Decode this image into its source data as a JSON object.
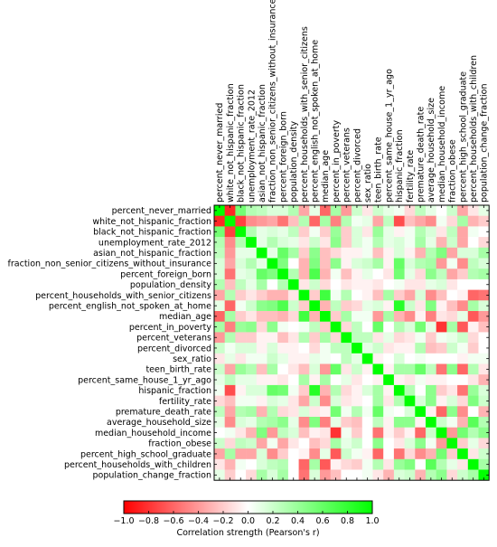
{
  "chart_data": {
    "type": "heatmap",
    "title": "",
    "variables": [
      "percent_never_married",
      "white_not_hispanic_fraction",
      "black_not_hispanic_fraction",
      "unemployment_rate_2012",
      "asian_not_hispanic_fraction",
      "fraction_non_senior_citizens_without_insurance",
      "percent_foreign_born",
      "population_density",
      "percent_households_with_senior_citizens",
      "percent_english_not_spoken_at_home",
      "median_age",
      "percent_in_poverty",
      "percent_veterans",
      "percent_divorced",
      "sex_ratio",
      "teen_birth_rate",
      "percent_same_house_1_yr_ago",
      "hispanic_fraction",
      "fertility_rate",
      "premature_death_rate",
      "average_household_size",
      "median_household_income",
      "fraction_obese",
      "percent_high_school_graduate",
      "percent_households_with_children",
      "population_change_fraction"
    ],
    "matrix": [
      [
        1.0,
        -0.85,
        0.55,
        0.3,
        0.25,
        0.15,
        0.15,
        0.3,
        -0.35,
        0.1,
        -0.6,
        0.35,
        -0.4,
        0.2,
        -0.1,
        0.2,
        0.1,
        0.05,
        -0.15,
        0.25,
        0.1,
        0.0,
        0.2,
        -0.35,
        -0.1,
        0.1
      ],
      [
        -0.85,
        1.0,
        -0.75,
        -0.45,
        -0.4,
        -0.35,
        -0.55,
        -0.25,
        0.3,
        -0.6,
        0.35,
        -0.5,
        0.3,
        0.05,
        0.1,
        -0.35,
        0.25,
        -0.7,
        -0.25,
        -0.35,
        -0.45,
        0.05,
        -0.15,
        0.35,
        -0.3,
        -0.2
      ],
      [
        0.55,
        -0.75,
        1.0,
        0.3,
        0.1,
        0.15,
        0.1,
        0.25,
        -0.2,
        0.05,
        -0.2,
        0.4,
        -0.2,
        0.15,
        -0.1,
        0.4,
        0.1,
        -0.05,
        0.05,
        0.3,
        0.15,
        -0.1,
        0.25,
        -0.35,
        0.05,
        0.0
      ],
      [
        0.3,
        -0.45,
        0.3,
        1.0,
        0.1,
        0.3,
        0.15,
        0.1,
        -0.1,
        0.2,
        -0.1,
        0.45,
        -0.2,
        0.15,
        0.05,
        0.3,
        0.1,
        0.15,
        0.05,
        0.35,
        0.1,
        -0.3,
        0.2,
        -0.35,
        0.0,
        -0.15
      ],
      [
        0.25,
        -0.4,
        0.1,
        0.1,
        1.0,
        0.1,
        0.6,
        0.35,
        -0.2,
        0.45,
        -0.25,
        -0.15,
        -0.05,
        -0.05,
        0.05,
        -0.25,
        -0.05,
        0.15,
        -0.05,
        -0.3,
        0.3,
        0.5,
        -0.35,
        0.15,
        0.15,
        0.35
      ],
      [
        0.15,
        -0.35,
        0.15,
        0.3,
        0.1,
        1.0,
        0.5,
        0.0,
        -0.3,
        0.5,
        -0.25,
        0.45,
        -0.05,
        0.15,
        0.2,
        0.35,
        -0.05,
        0.6,
        0.15,
        0.3,
        0.35,
        -0.4,
        0.05,
        -0.45,
        0.25,
        0.15
      ],
      [
        0.15,
        -0.55,
        0.1,
        0.15,
        0.6,
        0.5,
        1.0,
        0.3,
        -0.3,
        0.7,
        -0.3,
        0.05,
        -0.25,
        -0.05,
        0.1,
        0.0,
        -0.1,
        0.55,
        0.1,
        -0.15,
        0.45,
        0.25,
        -0.35,
        -0.2,
        0.3,
        0.35
      ],
      [
        0.3,
        -0.25,
        0.25,
        0.1,
        0.35,
        0.0,
        0.3,
        1.0,
        -0.1,
        0.2,
        -0.15,
        0.0,
        -0.1,
        -0.05,
        -0.05,
        -0.1,
        0.0,
        0.05,
        -0.1,
        -0.1,
        0.1,
        0.15,
        -0.1,
        0.0,
        0.0,
        0.0
      ],
      [
        -0.35,
        0.3,
        -0.2,
        -0.1,
        -0.2,
        -0.3,
        -0.3,
        -0.1,
        1.0,
        -0.2,
        0.75,
        0.05,
        0.3,
        0.0,
        -0.05,
        -0.25,
        0.35,
        -0.2,
        -0.35,
        0.15,
        -0.45,
        -0.25,
        0.0,
        -0.05,
        -0.6,
        -0.55
      ],
      [
        0.1,
        -0.6,
        0.05,
        0.2,
        0.45,
        0.5,
        0.7,
        0.2,
        -0.2,
        1.0,
        -0.3,
        0.25,
        -0.2,
        -0.15,
        0.1,
        0.15,
        -0.05,
        0.85,
        0.2,
        -0.1,
        0.5,
        -0.05,
        -0.25,
        -0.45,
        0.35,
        0.15
      ],
      [
        -0.6,
        0.35,
        -0.2,
        -0.1,
        -0.25,
        -0.25,
        -0.3,
        -0.15,
        0.75,
        -0.3,
        1.0,
        -0.2,
        0.35,
        0.05,
        0.05,
        -0.4,
        0.35,
        -0.3,
        -0.45,
        -0.05,
        -0.5,
        -0.1,
        -0.15,
        0.1,
        -0.65,
        -0.4
      ],
      [
        0.35,
        -0.5,
        0.4,
        0.45,
        -0.15,
        0.45,
        0.05,
        0.0,
        0.05,
        0.25,
        -0.2,
        1.0,
        -0.15,
        0.25,
        0.0,
        0.6,
        0.0,
        0.3,
        0.15,
        0.55,
        0.1,
        -0.8,
        0.35,
        -0.65,
        -0.05,
        -0.25
      ],
      [
        -0.4,
        0.3,
        -0.2,
        -0.2,
        -0.05,
        -0.05,
        -0.25,
        -0.1,
        0.3,
        -0.2,
        0.35,
        -0.15,
        1.0,
        0.25,
        0.25,
        -0.1,
        0.1,
        -0.15,
        -0.1,
        0.05,
        -0.2,
        0.05,
        0.1,
        0.2,
        -0.15,
        0.0
      ],
      [
        0.2,
        0.05,
        0.15,
        0.15,
        -0.05,
        0.15,
        -0.05,
        -0.05,
        0.0,
        -0.15,
        0.05,
        0.25,
        0.25,
        1.0,
        0.1,
        0.2,
        -0.1,
        -0.05,
        -0.05,
        0.3,
        -0.25,
        -0.2,
        0.2,
        0.05,
        -0.2,
        0.0
      ],
      [
        -0.1,
        0.1,
        -0.1,
        0.05,
        0.05,
        0.2,
        0.1,
        -0.05,
        -0.05,
        0.1,
        0.05,
        0.0,
        0.25,
        0.1,
        1.0,
        -0.05,
        0.0,
        0.15,
        0.0,
        0.05,
        0.0,
        0.0,
        0.0,
        -0.05,
        0.05,
        0.05
      ],
      [
        0.2,
        -0.35,
        0.4,
        0.3,
        -0.25,
        0.35,
        0.0,
        -0.1,
        -0.25,
        0.15,
        -0.4,
        0.6,
        -0.1,
        0.2,
        -0.05,
        1.0,
        -0.05,
        0.35,
        0.35,
        0.6,
        0.25,
        -0.55,
        0.45,
        -0.6,
        0.3,
        -0.1
      ],
      [
        0.1,
        0.25,
        0.1,
        0.1,
        -0.05,
        -0.05,
        -0.1,
        0.0,
        0.35,
        -0.05,
        0.35,
        0.0,
        0.1,
        -0.1,
        0.0,
        -0.05,
        1.0,
        -0.05,
        -0.1,
        0.05,
        -0.05,
        -0.05,
        0.0,
        0.0,
        -0.1,
        -0.3
      ],
      [
        0.05,
        -0.7,
        -0.05,
        0.15,
        0.15,
        0.6,
        0.55,
        0.05,
        -0.2,
        0.85,
        -0.3,
        0.3,
        -0.15,
        -0.05,
        0.15,
        0.35,
        -0.05,
        1.0,
        0.3,
        0.0,
        0.45,
        -0.2,
        -0.1,
        -0.55,
        0.4,
        0.15
      ],
      [
        -0.15,
        -0.25,
        0.05,
        0.05,
        -0.05,
        0.15,
        0.1,
        -0.1,
        -0.35,
        0.2,
        -0.45,
        0.15,
        -0.1,
        -0.05,
        0.0,
        0.35,
        -0.1,
        0.3,
        1.0,
        0.15,
        0.45,
        -0.05,
        0.15,
        -0.15,
        0.5,
        0.2
      ],
      [
        0.25,
        -0.35,
        0.3,
        0.35,
        -0.3,
        0.3,
        -0.15,
        -0.1,
        0.15,
        -0.1,
        -0.05,
        0.55,
        0.05,
        0.3,
        0.05,
        0.6,
        0.05,
        0.0,
        0.15,
        1.0,
        -0.05,
        -0.6,
        0.45,
        -0.45,
        0.0,
        -0.3
      ],
      [
        0.1,
        -0.45,
        0.15,
        0.1,
        0.3,
        0.35,
        0.45,
        0.1,
        -0.45,
        0.5,
        -0.5,
        0.1,
        -0.2,
        -0.25,
        0.0,
        0.25,
        -0.05,
        0.45,
        0.45,
        -0.05,
        1.0,
        0.2,
        0.05,
        -0.3,
        0.65,
        0.3
      ],
      [
        0.0,
        0.05,
        -0.1,
        -0.3,
        0.5,
        -0.4,
        0.25,
        0.15,
        -0.25,
        -0.05,
        -0.1,
        -0.8,
        0.05,
        -0.2,
        0.0,
        -0.55,
        -0.05,
        -0.2,
        -0.05,
        -0.6,
        0.2,
        1.0,
        -0.4,
        0.55,
        0.3,
        0.45
      ],
      [
        0.2,
        -0.15,
        0.25,
        0.2,
        -0.35,
        0.05,
        -0.35,
        -0.1,
        0.0,
        -0.25,
        -0.15,
        0.35,
        0.1,
        0.2,
        0.0,
        0.45,
        0.0,
        -0.1,
        0.15,
        0.45,
        0.05,
        -0.4,
        1.0,
        -0.2,
        0.1,
        -0.15
      ],
      [
        -0.35,
        0.35,
        -0.35,
        -0.35,
        0.15,
        -0.45,
        -0.2,
        0.0,
        -0.05,
        -0.45,
        0.1,
        -0.65,
        0.2,
        0.05,
        -0.05,
        -0.6,
        0.0,
        -0.55,
        -0.15,
        -0.45,
        -0.3,
        0.55,
        -0.2,
        1.0,
        -0.1,
        0.2
      ],
      [
        -0.1,
        -0.3,
        0.05,
        0.0,
        0.15,
        0.25,
        0.3,
        0.0,
        -0.6,
        0.35,
        -0.65,
        -0.05,
        -0.15,
        -0.2,
        0.05,
        0.3,
        -0.1,
        0.4,
        0.5,
        0.0,
        0.65,
        0.3,
        0.1,
        -0.1,
        1.0,
        0.35
      ],
      [
        0.1,
        -0.2,
        0.0,
        -0.15,
        0.35,
        0.15,
        0.35,
        0.0,
        -0.55,
        0.15,
        -0.4,
        -0.25,
        0.0,
        0.0,
        0.05,
        -0.1,
        -0.3,
        0.15,
        0.2,
        -0.3,
        0.3,
        0.45,
        -0.15,
        0.2,
        0.35,
        1.0
      ]
    ],
    "color_scale": {
      "min": -1.0,
      "max": 1.0,
      "negative_color": "#ff0000",
      "mid_color": "#ffffff",
      "positive_color": "#00ff00"
    },
    "colorbar": {
      "ticks": [
        "−1.0",
        "−0.8",
        "−0.6",
        "−0.4",
        "−0.2",
        "0.0",
        "0.2",
        "0.4",
        "0.6",
        "0.8",
        "1.0"
      ],
      "label": "Correlation strength (Pearson's r)",
      "placement": "bottom"
    }
  }
}
